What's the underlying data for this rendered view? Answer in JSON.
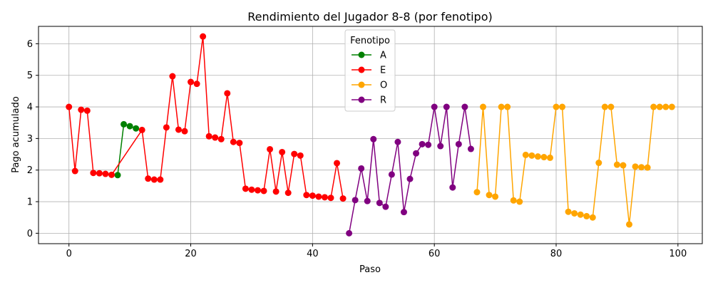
{
  "chart_data": {
    "type": "line",
    "title": "Rendimiento del Jugador 8-8 (por fenotipo)",
    "xlabel": "Paso",
    "ylabel": "Pago acumulado",
    "xlim": [
      -5,
      104
    ],
    "ylim": [
      -0.33,
      6.55
    ],
    "xticks": [
      0,
      20,
      40,
      60,
      80,
      100
    ],
    "yticks": [
      0,
      1,
      2,
      3,
      4,
      5,
      6
    ],
    "grid": true,
    "legend": {
      "title": "Fenotipo",
      "placement": "top-center"
    },
    "series": [
      {
        "name": "A",
        "color": "#008000",
        "x": [
          8,
          9,
          10,
          11
        ],
        "y": [
          1.84,
          3.45,
          3.39,
          3.32
        ]
      },
      {
        "name": "E",
        "color": "#ff0000",
        "x": [
          0,
          1,
          2,
          3,
          4,
          5,
          6,
          7,
          12,
          13,
          14,
          15,
          16,
          17,
          18,
          19,
          20,
          21,
          22,
          23,
          24,
          25,
          26,
          27,
          28,
          29,
          30,
          31,
          32,
          33,
          34,
          35,
          36,
          37,
          38,
          39,
          40,
          41,
          42,
          43,
          44,
          45
        ],
        "y": [
          4.0,
          1.97,
          3.91,
          3.88,
          1.91,
          1.9,
          1.88,
          1.85,
          3.27,
          1.73,
          1.7,
          1.7,
          3.35,
          4.97,
          3.28,
          3.23,
          4.79,
          4.73,
          6.23,
          3.07,
          3.03,
          2.98,
          4.43,
          2.89,
          2.86,
          1.41,
          1.38,
          1.36,
          1.34,
          2.66,
          1.32,
          2.57,
          1.28,
          2.51,
          2.46,
          1.21,
          1.19,
          1.16,
          1.14,
          1.12,
          2.22,
          1.1
        ]
      },
      {
        "name": "O",
        "color": "#ffa500",
        "x": [
          67,
          68,
          69,
          70,
          71,
          72,
          73,
          74,
          75,
          76,
          77,
          78,
          79,
          80,
          81,
          82,
          83,
          84,
          85,
          86,
          87,
          88,
          89,
          90,
          91,
          92,
          93,
          94,
          95,
          96,
          97,
          98,
          99
        ],
        "y": [
          1.3,
          4.0,
          1.21,
          1.16,
          4.0,
          4.0,
          1.04,
          1.0,
          2.48,
          2.46,
          2.43,
          2.41,
          2.39,
          4.0,
          4.0,
          0.68,
          0.63,
          0.59,
          0.54,
          0.5,
          2.23,
          4.0,
          4.0,
          2.17,
          2.15,
          0.28,
          2.11,
          2.09,
          2.08,
          4.0,
          4.0,
          4.0,
          4.0
        ]
      },
      {
        "name": "R",
        "color": "#800080",
        "x": [
          46,
          47,
          48,
          49,
          50,
          51,
          52,
          53,
          54,
          55,
          56,
          57,
          58,
          59,
          60,
          61,
          62,
          63,
          64,
          65,
          66
        ],
        "y": [
          0.0,
          1.05,
          2.05,
          1.02,
          2.98,
          0.96,
          0.84,
          1.86,
          2.89,
          0.67,
          1.72,
          2.53,
          2.82,
          2.8,
          4.0,
          2.76,
          4.0,
          1.45,
          2.82,
          4.0,
          2.67
        ]
      }
    ]
  }
}
